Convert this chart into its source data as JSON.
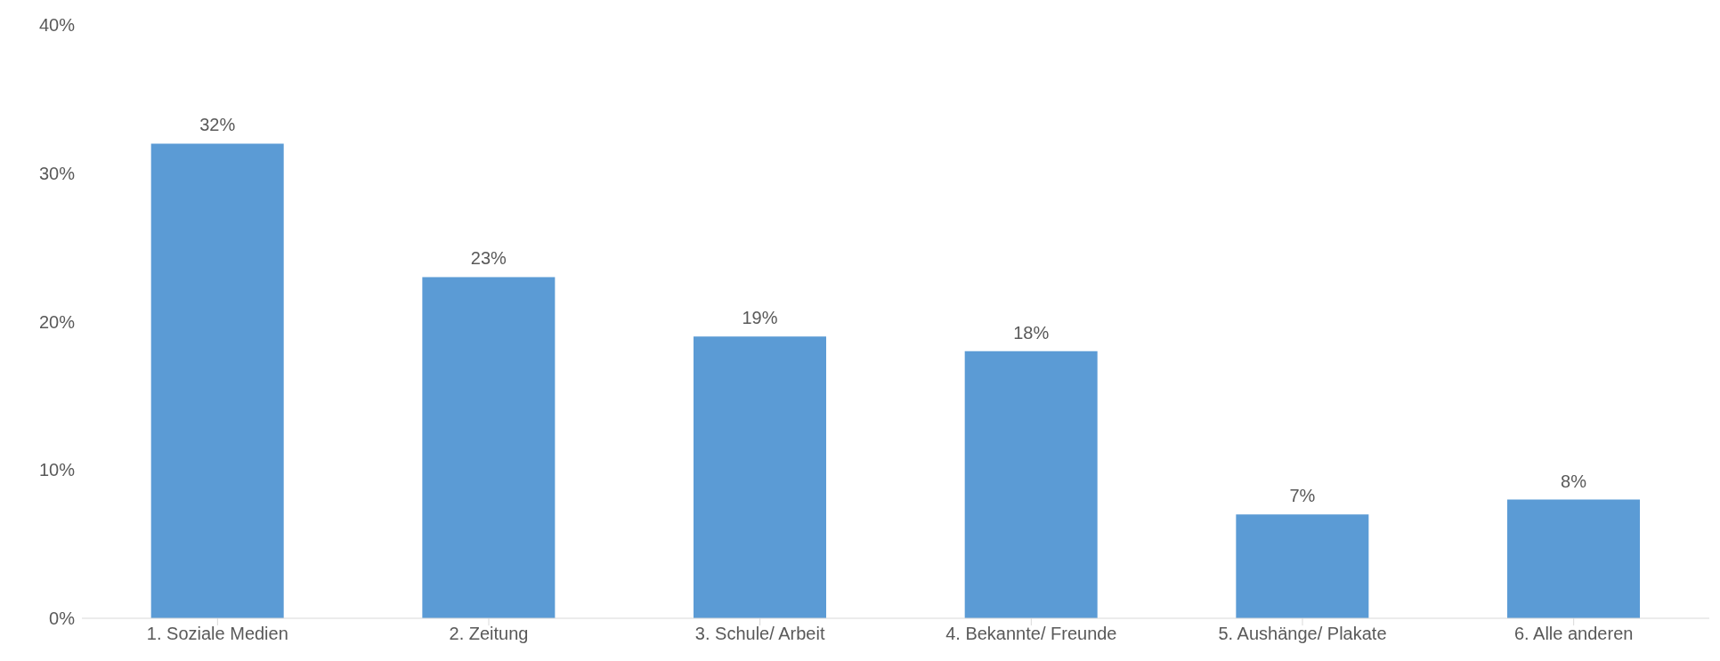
{
  "chart_data": {
    "type": "bar",
    "categories": [
      "1. Soziale Medien",
      "2. Zeitung",
      "3. Schule/ Arbeit",
      "4. Bekannte/ Freunde",
      "5. Aushänge/ Plakate",
      "6. Alle anderen"
    ],
    "values": [
      32,
      23,
      19,
      18,
      7,
      8
    ],
    "value_labels": [
      "32%",
      "23%",
      "19%",
      "18%",
      "7%",
      "8%"
    ],
    "color": "#5b9bd5",
    "ylim": [
      0,
      40
    ],
    "yticks": [
      {
        "value": 0,
        "label": "0%"
      },
      {
        "value": 10,
        "label": "10%"
      },
      {
        "value": 20,
        "label": "20%"
      },
      {
        "value": 30,
        "label": "30%"
      },
      {
        "value": 40,
        "label": "40%"
      }
    ],
    "grid": false,
    "legend": false
  }
}
